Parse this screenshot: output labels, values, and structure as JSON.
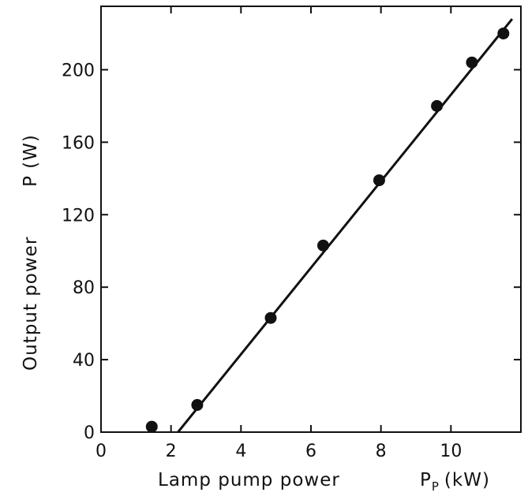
{
  "chart_data": {
    "type": "scatter",
    "xlabel": "Lamp pump power",
    "xlabel_symbol": "P",
    "xlabel_subscript": "P",
    "xlabel_unit": "(kW)",
    "ylabel": "Output power",
    "ylabel_symbol": "P (W)",
    "xlim": [
      0,
      12
    ],
    "ylim": [
      0,
      235
    ],
    "x_ticks": [
      0,
      2,
      4,
      6,
      8,
      10
    ],
    "y_ticks": [
      0,
      40,
      80,
      120,
      160,
      200
    ],
    "grid": false,
    "series": [
      {
        "points": [
          {
            "x": 1.45,
            "y": 3
          },
          {
            "x": 2.75,
            "y": 15
          },
          {
            "x": 4.85,
            "y": 63
          },
          {
            "x": 6.35,
            "y": 103
          },
          {
            "x": 7.95,
            "y": 139
          },
          {
            "x": 9.6,
            "y": 180
          },
          {
            "x": 10.6,
            "y": 204
          },
          {
            "x": 11.5,
            "y": 220
          }
        ]
      }
    ],
    "fit_line": {
      "x": [
        2.2,
        11.75
      ],
      "y": [
        0,
        228
      ]
    }
  }
}
